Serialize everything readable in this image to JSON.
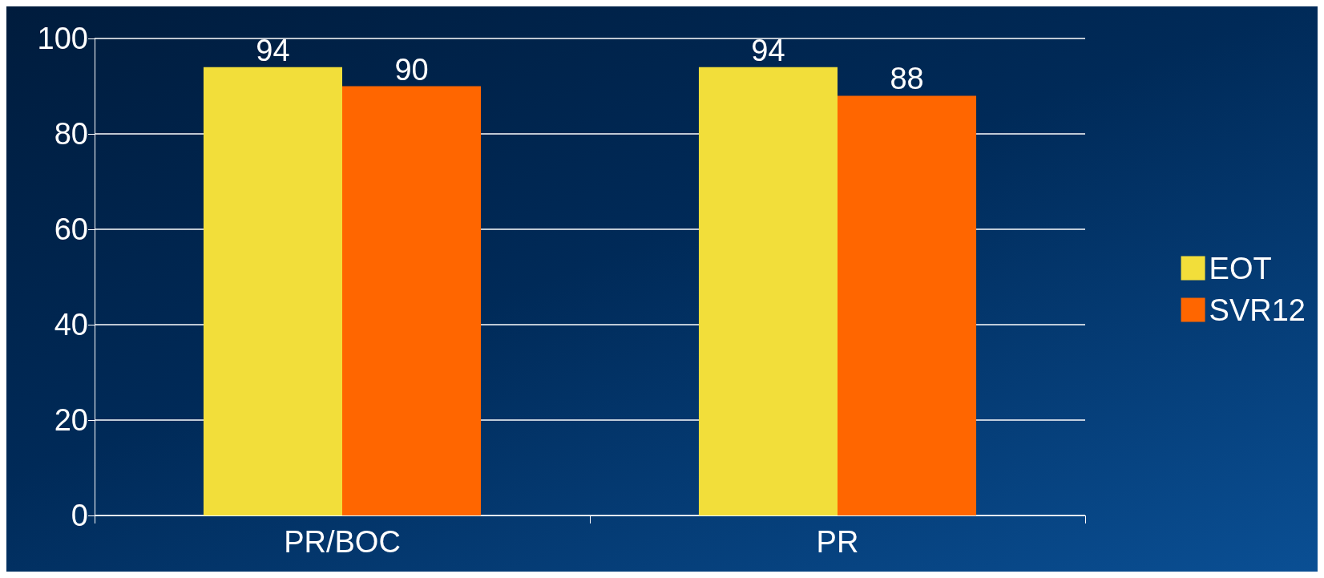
{
  "chart_data": {
    "type": "bar",
    "categories": [
      "PR/BOC",
      "PR"
    ],
    "series": [
      {
        "name": "EOT",
        "color": "#f2de3a",
        "values": [
          94,
          94
        ]
      },
      {
        "name": "SVR12",
        "color": "#ff6600",
        "values": [
          90,
          88
        ]
      }
    ],
    "ylim": [
      0,
      100
    ],
    "yticks": [
      0,
      20,
      40,
      60,
      80,
      100
    ],
    "grid": "y",
    "legend": "right",
    "data_labels": true
  }
}
